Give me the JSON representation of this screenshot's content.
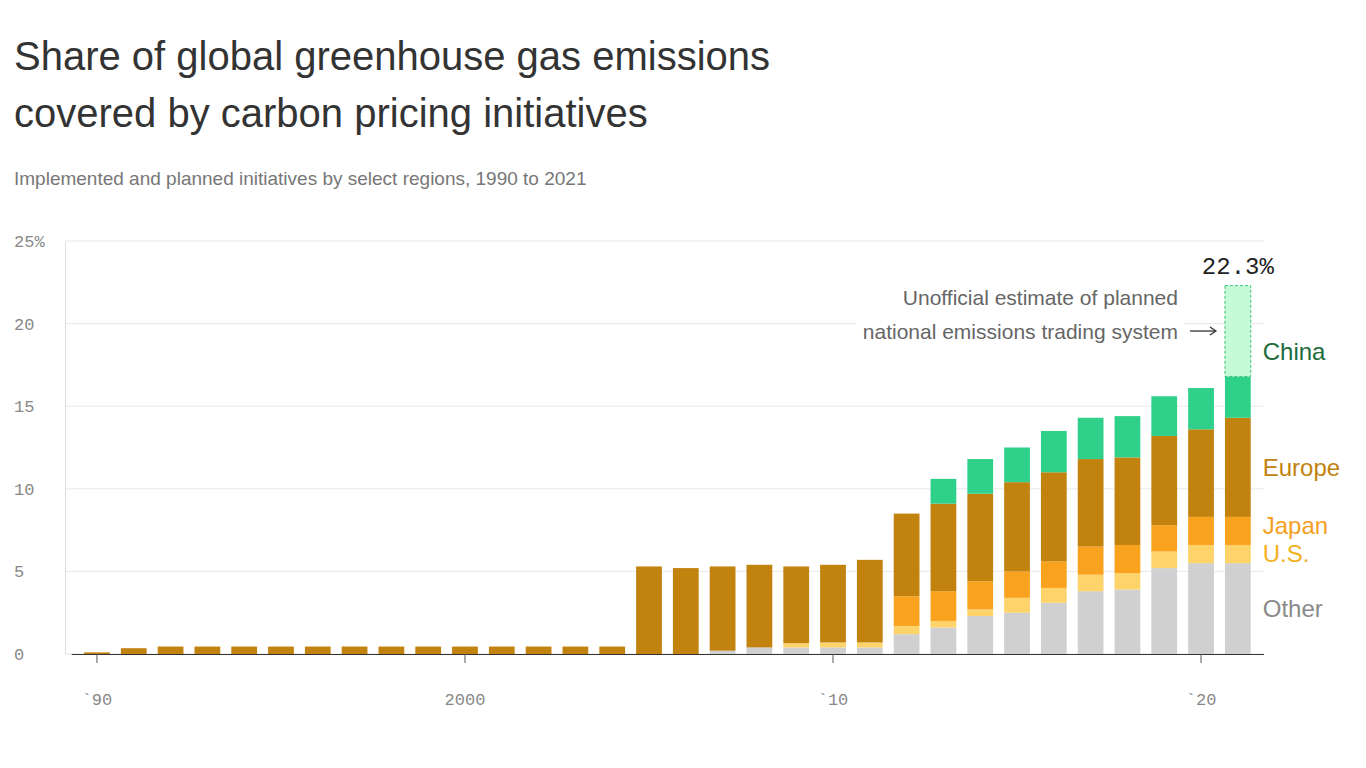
{
  "chart_data": {
    "type": "bar",
    "title": "Share of global greenhouse gas emissions covered by carbon pricing initiatives",
    "subtitle": "Implemented and planned initiatives by select regions, 1990 to 2021",
    "categories": [
      "`90",
      null,
      null,
      null,
      null,
      null,
      null,
      null,
      null,
      null,
      "2000",
      null,
      null,
      null,
      null,
      null,
      null,
      null,
      null,
      null,
      "`10",
      null,
      null,
      null,
      null,
      null,
      null,
      null,
      null,
      null,
      "`20",
      null
    ],
    "series": [
      {
        "name": "Other",
        "color": "#d0d0d0",
        "values": [
          0,
          0,
          0,
          0,
          0,
          0,
          0,
          0,
          0,
          0,
          0,
          0,
          0,
          0,
          0,
          0,
          0,
          0.2,
          0.4,
          0.4,
          0.4,
          0.4,
          1.2,
          1.6,
          2.3,
          2.5,
          3.1,
          3.8,
          3.9,
          5.2,
          5.5,
          5.5
        ]
      },
      {
        "name": "U.S.",
        "color": "#fdd36a",
        "values": [
          0,
          0,
          0,
          0,
          0,
          0,
          0,
          0,
          0,
          0,
          0,
          0,
          0,
          0,
          0,
          0,
          0,
          0,
          0,
          0.25,
          0.3,
          0.3,
          0.5,
          0.4,
          0.4,
          0.9,
          0.9,
          1.0,
          1.0,
          1.0,
          1.1,
          1.1
        ]
      },
      {
        "name": "Japan",
        "color": "#f9a21e",
        "values": [
          0,
          0,
          0,
          0,
          0,
          0,
          0,
          0,
          0,
          0,
          0,
          0,
          0,
          0,
          0,
          0,
          0,
          0,
          0,
          0,
          0,
          0,
          1.8,
          1.8,
          1.7,
          1.6,
          1.6,
          1.7,
          1.7,
          1.6,
          1.7,
          1.7
        ]
      },
      {
        "name": "Europe",
        "color": "#c2820e",
        "values": [
          0.1,
          0.35,
          0.45,
          0.45,
          0.45,
          0.45,
          0.45,
          0.45,
          0.45,
          0.45,
          0.45,
          0.45,
          0.45,
          0.45,
          0.45,
          5.3,
          5.2,
          5.1,
          5.0,
          4.65,
          4.7,
          5.0,
          5.0,
          5.3,
          5.3,
          5.4,
          5.4,
          5.3,
          5.3,
          5.4,
          5.3,
          6.0
        ]
      },
      {
        "name": "China",
        "color": "#2fd08a",
        "values": [
          0,
          0,
          0,
          0,
          0,
          0,
          0,
          0,
          0,
          0,
          0,
          0,
          0,
          0,
          0,
          0,
          0,
          0,
          0,
          0,
          0,
          0,
          0,
          1.5,
          2.1,
          2.1,
          2.5,
          2.5,
          2.5,
          2.4,
          2.5,
          2.5
        ]
      },
      {
        "name": "Unofficial estimate of planned national emissions trading system",
        "color": "#c6fbd8",
        "line_style": "dashed",
        "values": [
          null,
          null,
          null,
          null,
          null,
          null,
          null,
          null,
          null,
          null,
          null,
          null,
          null,
          null,
          null,
          null,
          null,
          null,
          null,
          null,
          null,
          null,
          null,
          null,
          null,
          null,
          null,
          null,
          null,
          null,
          null,
          5.5
        ]
      }
    ],
    "annotations": [
      {
        "label": "22.3%",
        "value": 22.3
      }
    ],
    "ylim": [
      0,
      25
    ],
    "yticks": [
      0,
      5,
      10,
      15,
      20,
      {
        "value": 25,
        "label": "25%"
      }
    ],
    "stacked": true,
    "grid": true,
    "legend": "right"
  }
}
